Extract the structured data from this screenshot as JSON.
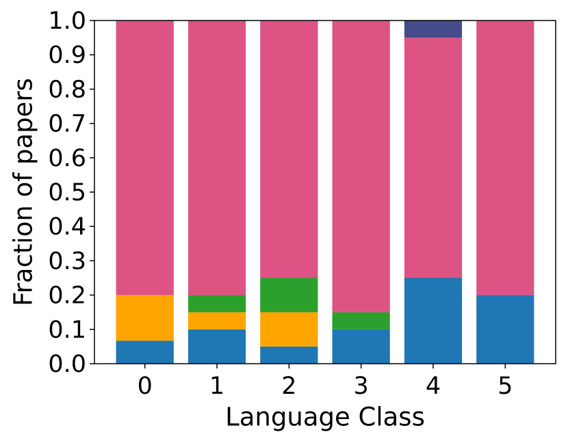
{
  "chart_data": {
    "type": "stacked-bar",
    "x_label": "Language Class",
    "y_label": "Fraction of papers",
    "categories": [
      "0",
      "1",
      "2",
      "3",
      "4",
      "5"
    ],
    "series": [
      {
        "color": "#1f77b4",
        "values": [
          0.067,
          0.1,
          0.05,
          0.1,
          0.25,
          0.2
        ]
      },
      {
        "color": "#ffa500",
        "values": [
          0.133,
          0.05,
          0.1,
          0,
          0,
          0
        ]
      },
      {
        "color": "#2ca02c",
        "values": [
          0,
          0.05,
          0.1,
          0.05,
          0,
          0
        ]
      },
      {
        "color": "#dd5383",
        "values": [
          0.8,
          0.8,
          0.75,
          0.85,
          0.7,
          0.8
        ]
      },
      {
        "color": "#464c8a",
        "values": [
          0,
          0,
          0,
          0,
          0.05,
          0
        ]
      }
    ],
    "ylim": [
      0,
      1
    ],
    "yticks": [
      {
        "value": 0,
        "label": "0.0"
      },
      0.1,
      0.2,
      0.3,
      0.4,
      0.5,
      0.6,
      0.7,
      0.8,
      0.9,
      {
        "value": 1,
        "label": "1.0"
      }
    ]
  }
}
